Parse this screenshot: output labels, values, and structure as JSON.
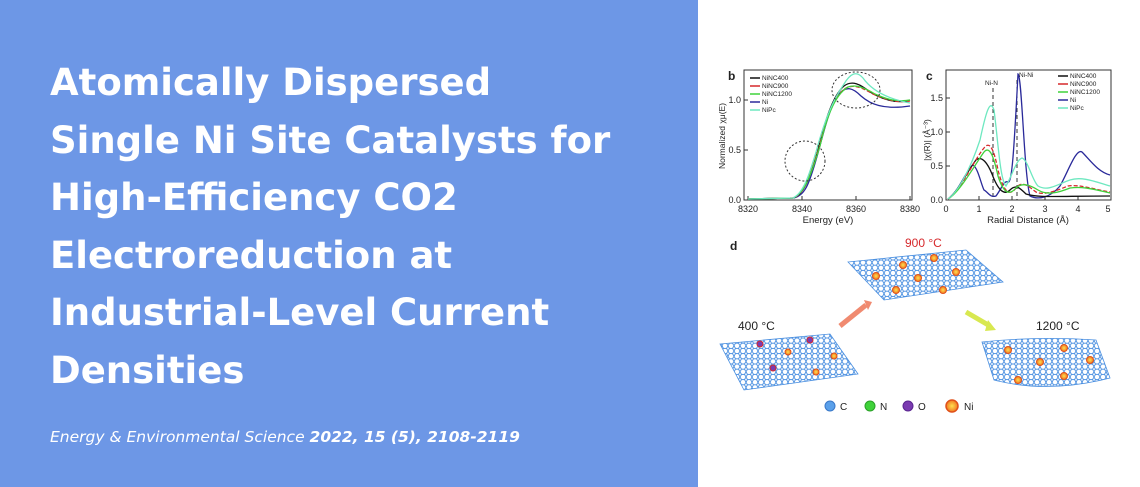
{
  "title_lines": [
    "Atomically Dispersed",
    "Single Ni Site Catalysts for",
    "High-Efficiency CO2",
    "Electroreduction at",
    "Industrial-Level Current",
    "Densities"
  ],
  "citation": {
    "journal": "Energy & Environmental Science",
    "reference": "2022, 15 (5), 2108-2119"
  },
  "colors": {
    "panel_background": "#6d97e6",
    "title_text": "#ffffff"
  },
  "figure": {
    "panel_b": {
      "label": "b",
      "ylabel": "Normalized χμ(E)",
      "xlabel": "Energy (eV)",
      "x_ticks": [
        "8320",
        "8340",
        "8360",
        "8380"
      ],
      "y_ticks": [
        "0.0",
        "0.5",
        "1.0"
      ],
      "legend": [
        "NiNC400",
        "NiNC900",
        "NiNC1200",
        "Ni",
        "NiPc"
      ]
    },
    "panel_c": {
      "label": "c",
      "ylabel": "|χ(R)| (Å⁻³)",
      "xlabel": "Radial Distance (Å)",
      "x_ticks": [
        "0",
        "1",
        "2",
        "3",
        "4",
        "5"
      ],
      "y_ticks": [
        "0.0",
        "0.5",
        "1.0",
        "1.5"
      ],
      "legend": [
        "NiNC400",
        "NiNC900",
        "NiNC1200",
        "Ni",
        "NiPc"
      ],
      "annotations": [
        "Ni-N",
        "Ni-Ni"
      ]
    },
    "panel_d": {
      "label": "d",
      "temperatures": [
        "400 °C",
        "900 °C",
        "1200 °C"
      ],
      "atom_legend": [
        "C",
        "N",
        "O",
        "Ni"
      ]
    },
    "series_colors": {
      "NiNC400": "#111111",
      "NiNC900": "#d6282b",
      "NiNC1200": "#3fd23a",
      "Ni": "#2a2a9a",
      "NiPc": "#6ee8c0"
    }
  }
}
